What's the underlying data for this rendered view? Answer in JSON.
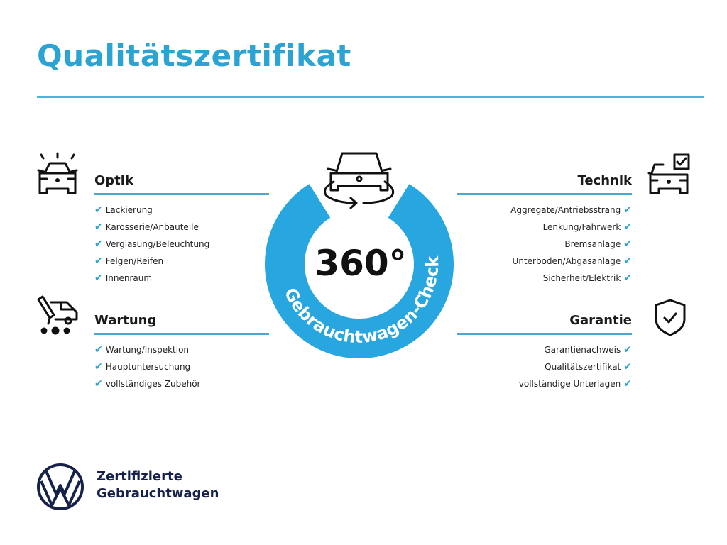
{
  "title": "Qualitätszertifikat",
  "center": {
    "number": "360°",
    "arc_text": "Gebrauchtwagen-Check",
    "color": "#27a6df"
  },
  "sections": {
    "optik": {
      "heading": "Optik",
      "items": [
        "Lackierung",
        "Karosserie/Anbauteile",
        "Verglasung/Beleuchtung",
        "Felgen/Reifen",
        "Innenraum"
      ]
    },
    "wartung": {
      "heading": "Wartung",
      "items": [
        "Wartung/Inspektion",
        "Hauptuntersuchung",
        "vollständiges Zubehör"
      ]
    },
    "technik": {
      "heading": "Technik",
      "items": [
        "Aggregate/Antriebsstrang",
        "Lenkung/Fahrwerk",
        "Bremsanlage",
        "Unterboden/Abgasanlage",
        "Sicherheit/Elektrik"
      ]
    },
    "garantie": {
      "heading": "Garantie",
      "items": [
        "Garantienachweis",
        "Qualitätszertifikat",
        "vollständige Unterlagen"
      ]
    }
  },
  "check_mark": "✔",
  "brand": {
    "line1": "Zertifizierte",
    "line2": "Gebrauchtwagen",
    "logo_text": "VW"
  },
  "colors": {
    "accent": "#2ba3d3",
    "navy": "#16224a"
  }
}
